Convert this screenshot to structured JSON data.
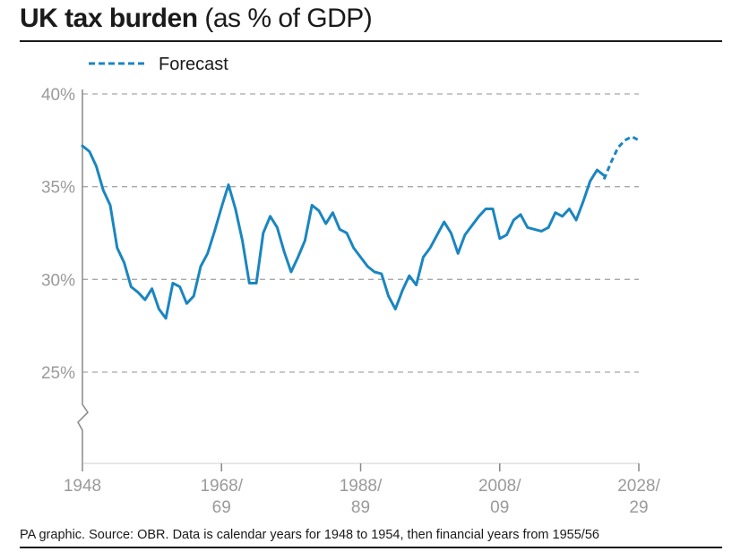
{
  "title": {
    "bold": "UK tax burden",
    "sub": "(as % of GDP)"
  },
  "source": "PA graphic. Source: OBR. Data is calendar years for 1948 to 1954, then financial years from 1955/56",
  "colors": {
    "line": "#1a86c0",
    "grid": "#a8a8a8",
    "axis_text": "#9a9a9a",
    "rule": "#1a1a1a"
  },
  "chart_data": {
    "type": "line",
    "legend": {
      "label": "Forecast",
      "style": "dashed",
      "placement": "top-left"
    },
    "ylim": [
      20,
      40
    ],
    "y_ticks": [
      {
        "value": 40,
        "label": "40%"
      },
      {
        "value": 35,
        "label": "35%"
      },
      {
        "value": 30,
        "label": "30%"
      },
      {
        "value": 25,
        "label": "25%"
      }
    ],
    "y_axis_break": true,
    "xlim": [
      1948,
      2029
    ],
    "x_ticks": [
      {
        "value": 1948,
        "line1": "1948",
        "line2": ""
      },
      {
        "value": 1968,
        "line1": "1968/",
        "line2": "69"
      },
      {
        "value": 1988,
        "line1": "1988/",
        "line2": "89"
      },
      {
        "value": 2008,
        "line1": "2008/",
        "line2": "09"
      },
      {
        "value": 2028,
        "line1": "2028/",
        "line2": "29"
      }
    ],
    "grid": true,
    "series": [
      {
        "x": [
          1948,
          1949,
          1950,
          1951,
          1952,
          1953,
          1954,
          1955,
          1956,
          1957,
          1958,
          1959,
          1960,
          1961,
          1962,
          1963,
          1964,
          1965,
          1966,
          1967,
          1968,
          1969,
          1970,
          1971,
          1972,
          1973,
          1974,
          1975,
          1976,
          1977,
          1978,
          1979,
          1980,
          1981,
          1982,
          1983,
          1984,
          1985,
          1986,
          1987,
          1988,
          1989,
          1990,
          1991,
          1992,
          1993,
          1994,
          1995,
          1996,
          1997,
          1998,
          1999,
          2000,
          2001,
          2002,
          2003,
          2004,
          2005,
          2006,
          2007,
          2008,
          2009,
          2010,
          2011,
          2012,
          2013,
          2014,
          2015,
          2016,
          2017,
          2018,
          2019,
          2020,
          2021,
          2022,
          2023
        ],
        "y": [
          37.2,
          36.9,
          36.1,
          34.8,
          34.0,
          31.7,
          30.9,
          29.6,
          29.3,
          28.9,
          29.5,
          28.4,
          27.9,
          29.8,
          29.6,
          28.7,
          29.1,
          30.7,
          31.4,
          32.6,
          33.9,
          35.1,
          33.8,
          32.1,
          29.8,
          29.8,
          32.5,
          33.4,
          32.8,
          31.5,
          30.4,
          31.2,
          32.1,
          34.0,
          33.7,
          33.0,
          33.6,
          32.7,
          32.5,
          31.7,
          31.2,
          30.7,
          30.4,
          30.3,
          29.1,
          28.4,
          29.4,
          30.2,
          29.7,
          31.2,
          31.7,
          32.4,
          33.1,
          32.5,
          31.4,
          32.4,
          32.9,
          33.4,
          33.8,
          33.8,
          32.2,
          32.4,
          33.2,
          33.5,
          32.8,
          32.7,
          32.6,
          32.8,
          33.6,
          33.4,
          33.8,
          33.2,
          34.2,
          35.3,
          35.9,
          35.6
        ]
      },
      {
        "name": "Forecast",
        "dashed": true,
        "x": [
          2023,
          2024,
          2025,
          2026,
          2027,
          2028
        ],
        "y": [
          35.4,
          36.3,
          37.1,
          37.5,
          37.7,
          37.5
        ]
      }
    ]
  }
}
